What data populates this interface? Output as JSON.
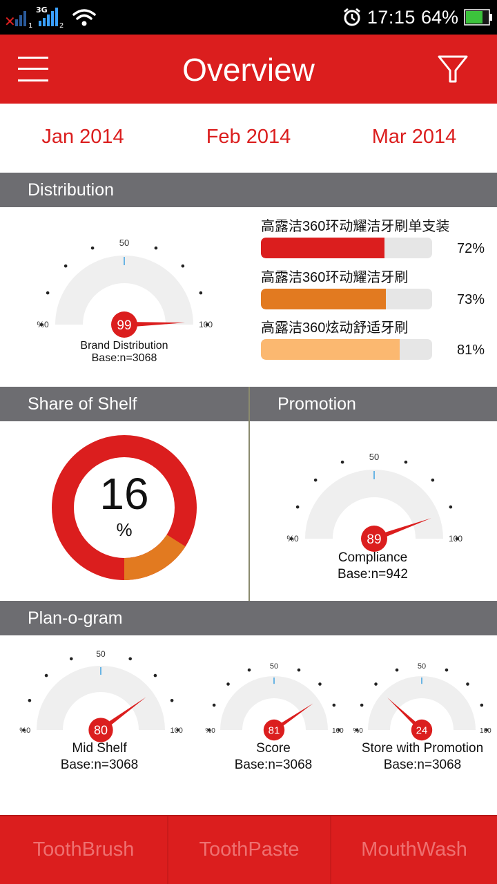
{
  "status_bar": {
    "network": "3G",
    "time": "17:15",
    "battery": "64%"
  },
  "header": {
    "title": "Overview"
  },
  "months": [
    "Jan 2014",
    "Feb 2014",
    "Mar 2014"
  ],
  "sections": {
    "distribution": "Distribution",
    "share_of_shelf": "Share of Shelf",
    "promotion": "Promotion",
    "planogram": "Plan-o-gram"
  },
  "gauge_ticks": {
    "min": "%0",
    "mid": "50",
    "max": "100"
  },
  "distribution": {
    "gauge": {
      "value": 99,
      "label": "Brand Distribution",
      "base": "Base:n=3068"
    },
    "items": [
      {
        "name": "高露洁360环动耀洁牙刷单支装",
        "value": 72,
        "pct": "72%",
        "color": "#db1e1e"
      },
      {
        "name": "高露洁360环动耀洁牙刷",
        "value": 73,
        "pct": "73%",
        "color": "#e27a20"
      },
      {
        "name": "高露洁360炫动舒适牙刷",
        "value": 81,
        "pct": "81%",
        "color": "#fbb870"
      }
    ]
  },
  "share_of_shelf": {
    "value": "16",
    "unit": "%",
    "fraction": 0.16,
    "ring_color": "#db1e1e",
    "share_color": "#e27a20"
  },
  "promotion": {
    "gauge": {
      "value": 89,
      "label": "Compliance",
      "base": "Base:n=942"
    }
  },
  "planogram": {
    "gauges": [
      {
        "value": 80,
        "label": "Mid Shelf",
        "base": "Base:n=3068"
      },
      {
        "value": 81,
        "label": "Score",
        "base": "Base:n=3068"
      },
      {
        "value": 24,
        "label": "Store with Promotion",
        "base": "Base:n=3068"
      }
    ]
  },
  "bottom_tabs": [
    "ToothBrush",
    "ToothPaste",
    "MouthWash"
  ],
  "colors": {
    "brand_red": "#db1e1e",
    "section_gray": "#6d6d71",
    "tab_text": "#ee7070"
  }
}
